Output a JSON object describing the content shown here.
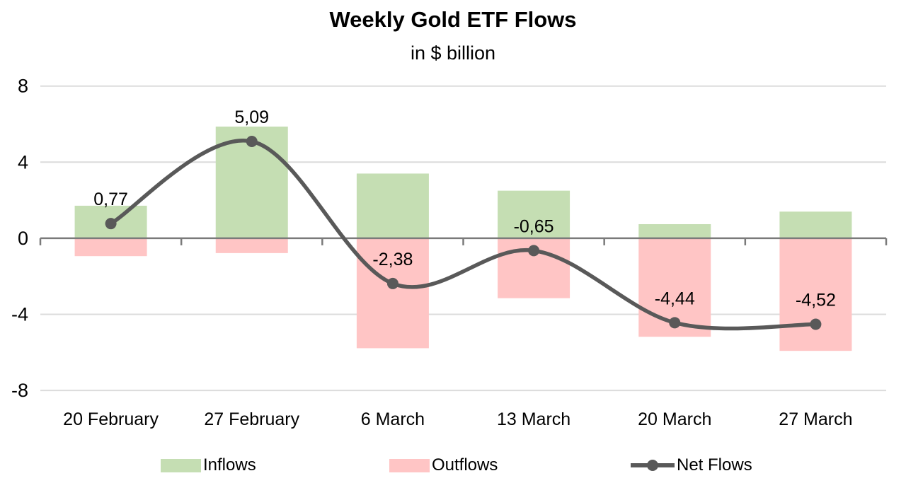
{
  "chart": {
    "title": "Weekly Gold ETF Flows",
    "subtitle": "in $ billion"
  },
  "chart_data": {
    "type": "combo-bar-line",
    "title": "Weekly Gold ETF Flows",
    "subtitle": "in $ billion",
    "categories": [
      "20 February",
      "27 February",
      "6 March",
      "13 March",
      "20 March",
      "27 March"
    ],
    "series": [
      {
        "name": "Inflows",
        "type": "bar",
        "color": "#c5deb3",
        "values": [
          1.71,
          5.87,
          3.4,
          2.5,
          0.74,
          1.4
        ]
      },
      {
        "name": "Outflows",
        "type": "bar",
        "color": "#ffc5c5",
        "values": [
          -0.94,
          -0.78,
          -5.78,
          -3.15,
          -5.18,
          -5.92
        ]
      },
      {
        "name": "Net Flows",
        "type": "line",
        "color": "#595959",
        "values": [
          0.77,
          5.09,
          -2.38,
          -0.65,
          -4.44,
          -4.52
        ],
        "labels": [
          "0,77",
          "5,09",
          "-2,38",
          "-0,65",
          "-4,44",
          "-4,52"
        ]
      }
    ],
    "ylim": [
      -8,
      8
    ],
    "yticks": [
      8,
      4,
      0,
      -4,
      -8
    ],
    "ytick_labels": [
      "8",
      "4",
      "0",
      "-4",
      "-8"
    ],
    "grid": true,
    "legend_position": "bottom",
    "axis_color": "#7a7a7a",
    "grid_color": "#dcdcdc",
    "label_color": "#000000"
  }
}
